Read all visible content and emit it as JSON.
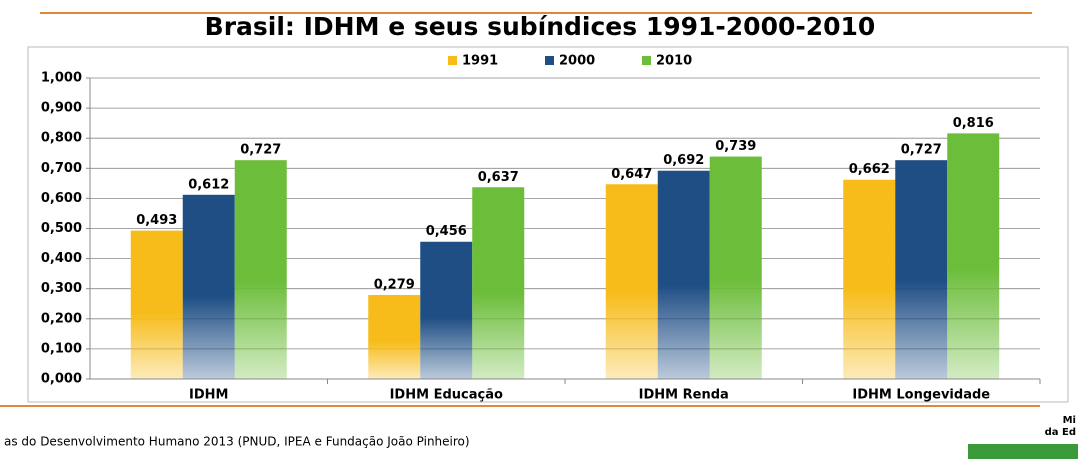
{
  "chart_data": {
    "type": "bar",
    "title": "Brasil: IDHM e seus subíndices 1991-2000-2010",
    "categories": [
      "IDHM",
      "IDHM Educação",
      "IDHM Renda",
      "IDHM Longevidade"
    ],
    "series": [
      {
        "name": "1991",
        "color": "#f7bc1a",
        "values": [
          0.493,
          0.279,
          0.647,
          0.662
        ],
        "value_labels": [
          "0,493",
          "0,279",
          "0,647",
          "0,662"
        ]
      },
      {
        "name": "2000",
        "color": "#1f4e85",
        "values": [
          0.612,
          0.456,
          0.692,
          0.727
        ],
        "value_labels": [
          "0,612",
          "0,456",
          "0,692",
          "0,727"
        ]
      },
      {
        "name": "2010",
        "color": "#6cbd3a",
        "values": [
          0.727,
          0.637,
          0.739,
          0.816
        ],
        "value_labels": [
          "0,727",
          "0,637",
          "0,739",
          "0,816"
        ]
      }
    ],
    "ylim": [
      0,
      1
    ],
    "yticks": [
      {
        "value": 0,
        "label": "0,000"
      },
      {
        "value": 0.1,
        "label": "0,100"
      },
      {
        "value": 0.2,
        "label": "0,200"
      },
      {
        "value": 0.3,
        "label": "0,300"
      },
      {
        "value": 0.4,
        "label": "0,400"
      },
      {
        "value": 0.5,
        "label": "0,500"
      },
      {
        "value": 0.6,
        "label": "0,600"
      },
      {
        "value": 0.7,
        "label": "0,700"
      },
      {
        "value": 0.8,
        "label": "0,800"
      },
      {
        "value": 0.9,
        "label": "0,900"
      },
      {
        "value": 1,
        "label": "1,000"
      }
    ],
    "grid": true,
    "legend": "top"
  },
  "footer": {
    "source": "as do Desenvolvimento Humano 2013 (PNUD, IPEA e Fundação João Pinheiro)",
    "logo_lines": [
      "Mi",
      "da Ed"
    ]
  }
}
